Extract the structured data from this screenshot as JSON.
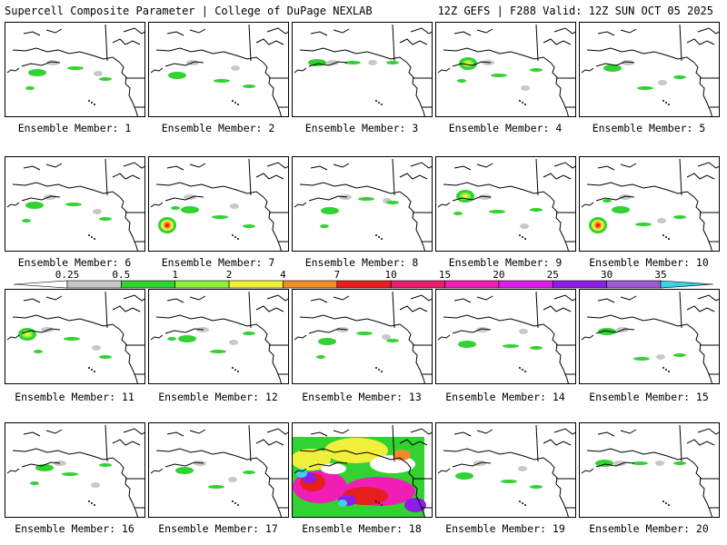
{
  "header": {
    "left_title": "Supercell Composite Parameter | College of DuPage NEXLAB",
    "right_title": "12Z GEFS | F288 Valid: 12Z SUN OCT 05 2025"
  },
  "panels": [
    {
      "caption": "Ensemble Member: 1",
      "intensity": "low"
    },
    {
      "caption": "Ensemble Member: 2",
      "intensity": "low"
    },
    {
      "caption": "Ensemble Member: 3",
      "intensity": "low"
    },
    {
      "caption": "Ensemble Member: 4",
      "intensity": "moderate"
    },
    {
      "caption": "Ensemble Member: 5",
      "intensity": "low"
    },
    {
      "caption": "Ensemble Member: 6",
      "intensity": "low"
    },
    {
      "caption": "Ensemble Member: 7",
      "intensity": "high"
    },
    {
      "caption": "Ensemble Member: 8",
      "intensity": "low"
    },
    {
      "caption": "Ensemble Member: 9",
      "intensity": "moderate"
    },
    {
      "caption": "Ensemble Member: 10",
      "intensity": "high"
    },
    {
      "caption": "Ensemble Member: 11",
      "intensity": "moderate"
    },
    {
      "caption": "Ensemble Member: 12",
      "intensity": "low"
    },
    {
      "caption": "Ensemble Member: 13",
      "intensity": "low"
    },
    {
      "caption": "Ensemble Member: 14",
      "intensity": "low"
    },
    {
      "caption": "Ensemble Member: 15",
      "intensity": "low"
    },
    {
      "caption": "Ensemble Member: 16",
      "intensity": "low"
    },
    {
      "caption": "Ensemble Member: 17",
      "intensity": "low"
    },
    {
      "caption": "Ensemble Member: 18",
      "intensity": "extreme"
    },
    {
      "caption": "Ensemble Member: 19",
      "intensity": "low"
    },
    {
      "caption": "Ensemble Member: 20",
      "intensity": "low"
    }
  ],
  "colorbar": {
    "labels": [
      "0.25",
      "0.5",
      "1",
      "2",
      "4",
      "7",
      "10",
      "15",
      "20",
      "25",
      "30",
      "35"
    ],
    "colors": [
      "#c8c8c8",
      "#32d232",
      "#8cf03c",
      "#f0f03c",
      "#f08c28",
      "#e61e1e",
      "#e61e6e",
      "#f01eb4",
      "#dc1eeb",
      "#8c1ee6",
      "#a05ad2",
      "#3cd2e6"
    ]
  }
}
